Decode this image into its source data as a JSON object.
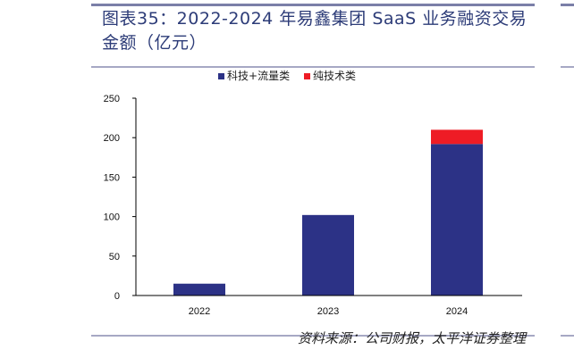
{
  "title": "图表35：2022-2024 年易鑫集团 SaaS 业务融资交易金额（亿元）",
  "source": "资料来源：公司财报，太平洋证券整理",
  "chart_data": {
    "type": "bar",
    "stacked": true,
    "title": "图表35：2022-2024 年易鑫集团 SaaS 业务融资交易金额（亿元）",
    "categories": [
      "2022",
      "2023",
      "2024"
    ],
    "series": [
      {
        "name": "科技+流量类",
        "color": "#2c3286",
        "values": [
          15,
          102,
          192
        ]
      },
      {
        "name": "纯技术类",
        "color": "#ee1c25",
        "values": [
          0,
          0,
          18
        ]
      }
    ],
    "ylim": [
      0,
      250
    ],
    "yticks": [
      0,
      50,
      100,
      150,
      200,
      250
    ],
    "xlabel": "",
    "ylabel": "",
    "legend": "top-center",
    "grid": false
  }
}
